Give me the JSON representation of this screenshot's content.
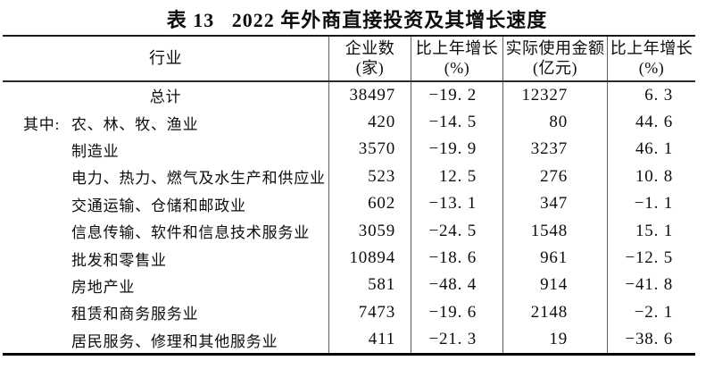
{
  "page": {
    "background_color": "#ffffff",
    "text_color": "#0d0d0d",
    "rule_color": "#1a1a1a"
  },
  "title": "表 13   2022 年外商直接投资及其增长速度",
  "table": {
    "header": {
      "industry": "行业",
      "enterprises_label": "企业数",
      "enterprises_unit": "(家)",
      "growth1_label": "比上年增长",
      "growth1_unit": "(%)",
      "amount_label": "实际使用金额",
      "amount_unit": "(亿元)",
      "growth2_label": "比上年增长",
      "growth2_unit": "(%)"
    },
    "rows": [
      {
        "prefix": "",
        "industry": "总计",
        "enterprises": "38497",
        "enterprises_growth": "−19. 2",
        "amount_used": "12327",
        "amount_growth": "6. 3"
      },
      {
        "prefix": "其中:",
        "industry": "农、林、牧、渔业",
        "enterprises": "420",
        "enterprises_growth": "−14. 5",
        "amount_used": "80",
        "amount_growth": "44. 6"
      },
      {
        "prefix": "",
        "industry": "制造业",
        "enterprises": "3570",
        "enterprises_growth": "−19. 9",
        "amount_used": "3237",
        "amount_growth": "46. 1"
      },
      {
        "prefix": "",
        "industry": "电力、热力、燃气及水生产和供应业",
        "enterprises": "523",
        "enterprises_growth": "12. 5",
        "amount_used": "276",
        "amount_growth": "10. 8"
      },
      {
        "prefix": "",
        "industry": "交通运输、仓储和邮政业",
        "enterprises": "602",
        "enterprises_growth": "−13. 1",
        "amount_used": "347",
        "amount_growth": "−1. 1"
      },
      {
        "prefix": "",
        "industry": "信息传输、软件和信息技术服务业",
        "enterprises": "3059",
        "enterprises_growth": "−24. 5",
        "amount_used": "1548",
        "amount_growth": "15. 1"
      },
      {
        "prefix": "",
        "industry": "批发和零售业",
        "enterprises": "10894",
        "enterprises_growth": "−18. 6",
        "amount_used": "961",
        "amount_growth": "−12. 5"
      },
      {
        "prefix": "",
        "industry": "房地产业",
        "enterprises": "581",
        "enterprises_growth": "−48. 4",
        "amount_used": "914",
        "amount_growth": "−41. 8"
      },
      {
        "prefix": "",
        "industry": "租赁和商务服务业",
        "enterprises": "7473",
        "enterprises_growth": "−19. 6",
        "amount_used": "2148",
        "amount_growth": "−2. 1"
      },
      {
        "prefix": "",
        "industry": "居民服务、修理和其他服务业",
        "enterprises": "411",
        "enterprises_growth": "−21. 3",
        "amount_used": "19",
        "amount_growth": "−38. 6"
      }
    ]
  }
}
